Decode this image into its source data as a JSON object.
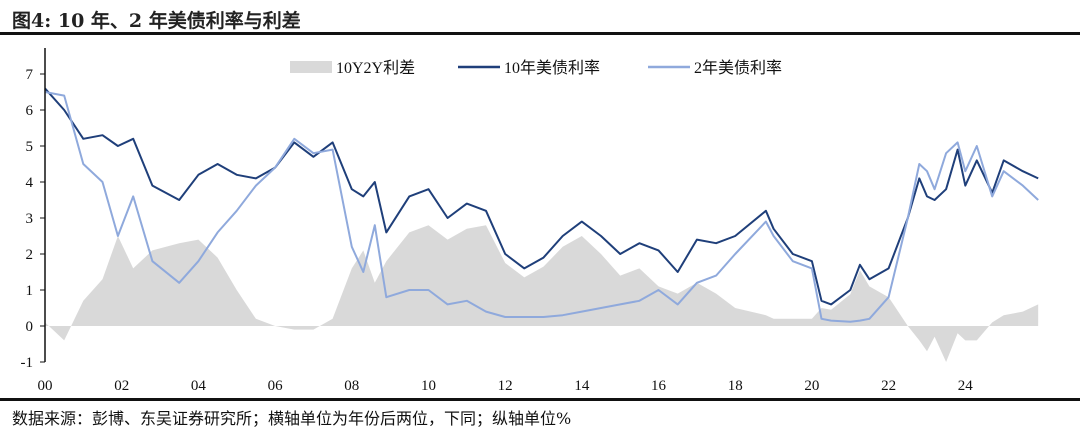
{
  "title": "图4:  10 年、2 年美债利率与利差",
  "footer": "数据来源：彭博、东吴证券研究所；横轴单位为年份后两位，下同；纵轴单位%",
  "chart_data": {
    "type": "line",
    "title": "图4:  10 年、2 年美债利率与利差",
    "xlabel": "",
    "ylabel": "%",
    "ylim": [
      -1,
      7
    ],
    "xlim": [
      2000,
      2026
    ],
    "yticks": [
      "-1",
      "0",
      "1",
      "2",
      "3",
      "4",
      "5",
      "6",
      "7"
    ],
    "xticks": [
      "00",
      "02",
      "04",
      "06",
      "08",
      "10",
      "12",
      "14",
      "16",
      "18",
      "20",
      "22",
      "24"
    ],
    "legend_position": "top",
    "x": [
      2000,
      2000.5,
      2001,
      2001.5,
      2001.9,
      2002.3,
      2002.8,
      2003.5,
      2004,
      2004.5,
      2005,
      2005.5,
      2006,
      2006.5,
      2007,
      2007.5,
      2008,
      2008.3,
      2008.6,
      2008.9,
      2009.5,
      2010,
      2010.5,
      2011,
      2011.5,
      2012,
      2012.5,
      2013,
      2013.5,
      2014,
      2014.5,
      2015,
      2015.5,
      2016,
      2016.5,
      2017,
      2017.5,
      2018,
      2018.8,
      2019,
      2019.5,
      2020,
      2020.25,
      2020.5,
      2021,
      2021.25,
      2021.5,
      2022,
      2022.5,
      2022.8,
      2023,
      2023.2,
      2023.5,
      2023.8,
      2024,
      2024.3,
      2024.7,
      2025,
      2025.5,
      2025.9
    ],
    "series": [
      {
        "name": "10Y2Y利差",
        "type": "area",
        "color": "#d9d9d9",
        "values": [
          0.1,
          -0.4,
          0.7,
          1.3,
          2.5,
          1.6,
          2.1,
          2.3,
          2.4,
          1.9,
          1.0,
          0.2,
          0.0,
          -0.1,
          -0.1,
          0.2,
          1.6,
          2.1,
          1.2,
          1.8,
          2.6,
          2.8,
          2.4,
          2.7,
          2.8,
          1.75,
          1.35,
          1.65,
          2.2,
          2.5,
          2.0,
          1.4,
          1.6,
          1.1,
          0.9,
          1.2,
          0.9,
          0.5,
          0.3,
          0.2,
          0.2,
          0.2,
          0.5,
          0.45,
          0.88,
          1.55,
          1.1,
          0.8,
          0.0,
          -0.4,
          -0.7,
          -0.3,
          -1.0,
          -0.2,
          -0.4,
          -0.4,
          0.1,
          0.3,
          0.4,
          0.6
        ]
      },
      {
        "name": "10年美债利率",
        "type": "line",
        "color": "#1f3f7a",
        "values": [
          6.6,
          6.0,
          5.2,
          5.3,
          5.0,
          5.2,
          3.9,
          3.5,
          4.2,
          4.5,
          4.2,
          4.1,
          4.4,
          5.1,
          4.7,
          5.1,
          3.8,
          3.6,
          4.0,
          2.6,
          3.6,
          3.8,
          3.0,
          3.4,
          3.2,
          2.0,
          1.6,
          1.9,
          2.5,
          2.9,
          2.5,
          2.0,
          2.3,
          2.1,
          1.5,
          2.4,
          2.3,
          2.5,
          3.2,
          2.7,
          2.0,
          1.8,
          0.7,
          0.6,
          1.0,
          1.7,
          1.3,
          1.6,
          3.0,
          4.1,
          3.6,
          3.5,
          3.8,
          4.9,
          3.9,
          4.6,
          3.7,
          4.6,
          4.3,
          4.1
        ]
      },
      {
        "name": "2年美债利率",
        "type": "line",
        "color": "#8fa9dc",
        "values": [
          6.5,
          6.4,
          4.5,
          4.0,
          2.5,
          3.6,
          1.8,
          1.2,
          1.8,
          2.6,
          3.2,
          3.9,
          4.4,
          5.2,
          4.8,
          4.9,
          2.2,
          1.5,
          2.8,
          0.8,
          1.0,
          1.0,
          0.6,
          0.7,
          0.4,
          0.25,
          0.25,
          0.25,
          0.3,
          0.4,
          0.5,
          0.6,
          0.7,
          1.0,
          0.6,
          1.2,
          1.4,
          2.0,
          2.9,
          2.5,
          1.8,
          1.6,
          0.2,
          0.15,
          0.12,
          0.15,
          0.2,
          0.8,
          3.0,
          4.5,
          4.3,
          3.8,
          4.8,
          5.1,
          4.3,
          5.0,
          3.6,
          4.3,
          3.9,
          3.5
        ]
      }
    ]
  }
}
